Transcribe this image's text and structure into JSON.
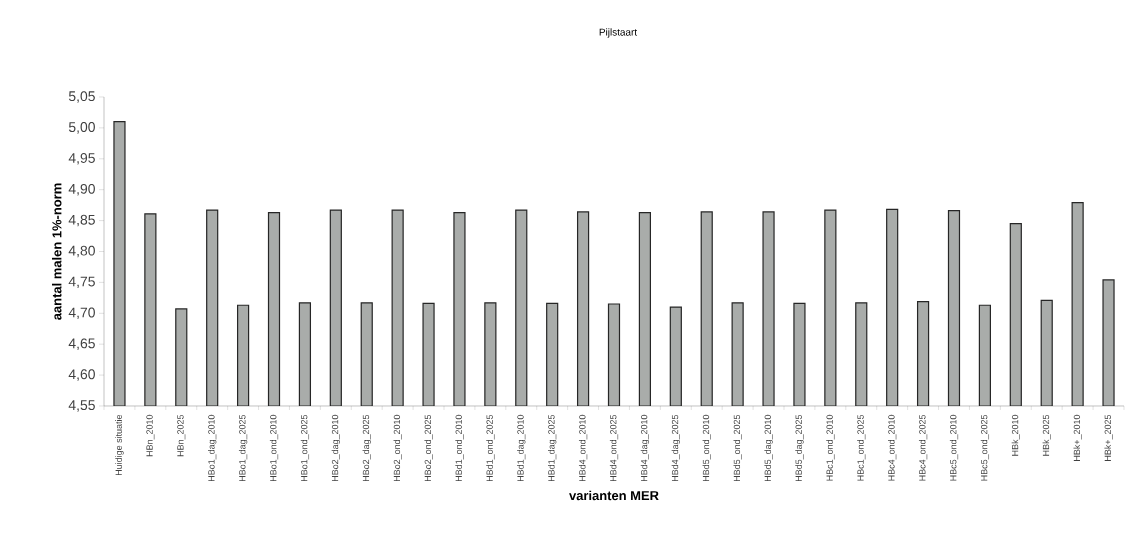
{
  "chart_data": {
    "type": "bar",
    "title": "Pijlstaart",
    "xlabel": "varianten MER",
    "ylabel": "aantal malen 1%-norm",
    "categories": [
      "Huidige situatie",
      "HBn_2010",
      "HBn_2025",
      "HBo1_dag_2010",
      "HBo1_dag_2025",
      "HBo1_ond_2010",
      "HBo1_ond_2025",
      "HBo2_dag_2010",
      "HBo2_dag_2025",
      "HBo2_ond_2010",
      "HBo2_ond_2025",
      "HBd1_ond_2010",
      "HBd1_ond_2025",
      "HBd1_dag_2010",
      "HBd1_dag_2025",
      "HBd4_ond_2010",
      "HBd4_ond_2025",
      "HBd4_dag_2010",
      "HBd4_dag_2025",
      "HBd5_ond_2010",
      "HBd5_ond_2025",
      "HBd5_dag_2010",
      "HBd5_dag_2025",
      "HBc1_ond_2010",
      "HBc1_ond_2025",
      "HBc4_ond_2010",
      "HBc4_ond_2025",
      "HBc5_ond_2010",
      "HBc5_ond_2025",
      "HBk_2010",
      "HBk_2025",
      "HBk+_2010",
      "HBk+_2025"
    ],
    "values": [
      5.01,
      4.861,
      4.707,
      4.867,
      4.713,
      4.863,
      4.717,
      4.867,
      4.717,
      4.867,
      4.716,
      4.863,
      4.717,
      4.867,
      4.716,
      4.864,
      4.715,
      4.863,
      4.71,
      4.864,
      4.717,
      4.864,
      4.716,
      4.867,
      4.717,
      4.868,
      4.719,
      4.866,
      4.713,
      4.845,
      4.721,
      4.879,
      4.754
    ],
    "color": "#a9acaa",
    "ylim": [
      4.55,
      5.05
    ],
    "yticks": [
      {
        "value": 4.55,
        "label": "4,55"
      },
      {
        "value": 4.6,
        "label": "4,60"
      },
      {
        "value": 4.65,
        "label": "4,65"
      },
      {
        "value": 4.7,
        "label": "4,70"
      },
      {
        "value": 4.75,
        "label": "4,75"
      },
      {
        "value": 4.8,
        "label": "4,80"
      },
      {
        "value": 4.85,
        "label": "4,85"
      },
      {
        "value": 4.9,
        "label": "4,90"
      },
      {
        "value": 4.95,
        "label": "4,95"
      },
      {
        "value": 5.0,
        "label": "5,00"
      },
      {
        "value": 5.05,
        "label": "5,05"
      }
    ],
    "grid": false
  }
}
